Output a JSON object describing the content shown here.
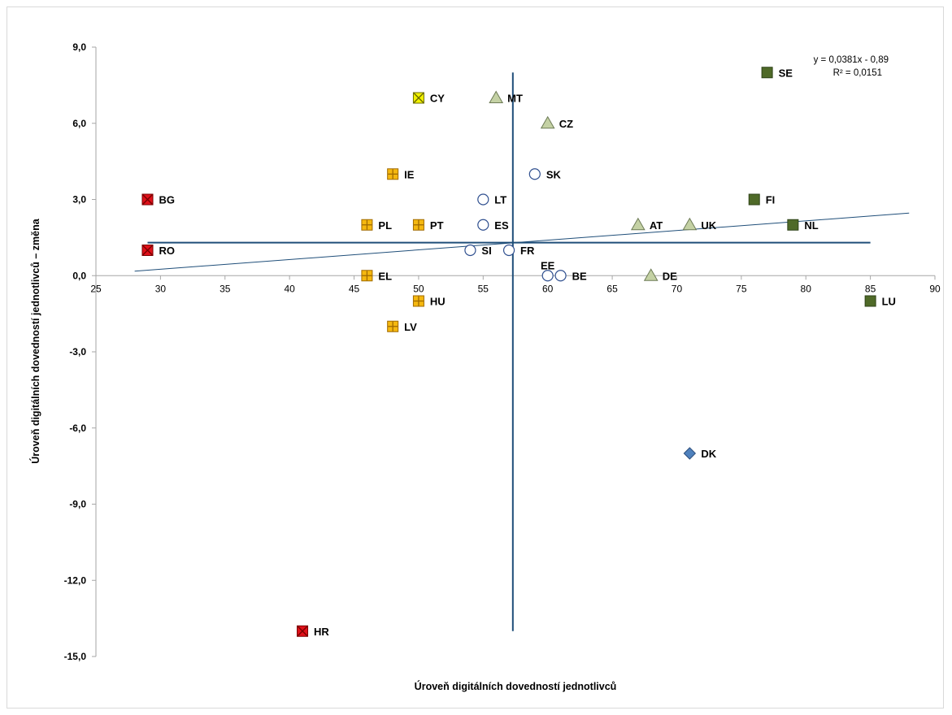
{
  "chart_data": {
    "type": "scatter",
    "xlabel": "Úroveň digitálních dovedností jednotlivců",
    "ylabel": "Úroveň digitálních dovedností jednotlivců – změna",
    "xlim": [
      25,
      90
    ],
    "ylim": [
      -15,
      9
    ],
    "x_ticks": [
      "25",
      "30",
      "35",
      "40",
      "45",
      "50",
      "55",
      "60",
      "65",
      "70",
      "75",
      "80",
      "85",
      "90"
    ],
    "y_ticks": [
      "9,0",
      "6,0",
      "3,0",
      "0,0",
      "-3,0",
      "-6,0",
      "-9,0",
      "-12,0",
      "-15,0"
    ],
    "grid": false,
    "trendline": {
      "equation": "y = 0,0381x - 0,89",
      "r2": "R² = 0,0151",
      "slope": 0.0381,
      "intercept": -0.89,
      "x_range": [
        28,
        88
      ]
    },
    "reference_lines": {
      "x_mean": 57.3,
      "y_mean": 1.3,
      "x_line_y_range": [
        -14,
        8
      ],
      "y_line_x_range": [
        29,
        85
      ]
    },
    "marker_styles": {
      "red_square": {
        "fill": "#e0101a",
        "stroke": "#7a0000",
        "glyph": "x"
      },
      "yellow_square": {
        "fill": "#f5b80f",
        "stroke": "#a06a00",
        "glyph": "plus"
      },
      "yellow_x": {
        "fill": "#f2f200",
        "stroke": "#6b6b00",
        "glyph": "x"
      },
      "circle": {
        "fill": "#ffffff",
        "stroke": "#2f4f8f"
      },
      "triangle": {
        "fill": "#c4d1a4",
        "stroke": "#6c7a55"
      },
      "green_square": {
        "fill": "#4f6a28",
        "stroke": "#2f4318"
      },
      "diamond": {
        "fill": "#4f81bd",
        "stroke": "#2d4f7c"
      }
    },
    "series_line_color": "#1f4e79",
    "points": [
      {
        "label": "SE",
        "x": 77,
        "y": 8,
        "marker": "green_square"
      },
      {
        "label": "CY",
        "x": 50,
        "y": 7,
        "marker": "yellow_x"
      },
      {
        "label": "MT",
        "x": 56,
        "y": 7,
        "marker": "triangle"
      },
      {
        "label": "CZ",
        "x": 60,
        "y": 6,
        "marker": "triangle"
      },
      {
        "label": "IE",
        "x": 48,
        "y": 4,
        "marker": "yellow_square"
      },
      {
        "label": "SK",
        "x": 59,
        "y": 4,
        "marker": "circle"
      },
      {
        "label": "BG",
        "x": 29,
        "y": 3,
        "marker": "red_square"
      },
      {
        "label": "LT",
        "x": 55,
        "y": 3,
        "marker": "circle"
      },
      {
        "label": "FI",
        "x": 76,
        "y": 3,
        "marker": "green_square"
      },
      {
        "label": "PL",
        "x": 46,
        "y": 2,
        "marker": "yellow_square"
      },
      {
        "label": "PT",
        "x": 50,
        "y": 2,
        "marker": "yellow_square"
      },
      {
        "label": "ES",
        "x": 55,
        "y": 2,
        "marker": "circle"
      },
      {
        "label": "AT",
        "x": 67,
        "y": 2,
        "marker": "triangle"
      },
      {
        "label": "UK",
        "x": 71,
        "y": 2,
        "marker": "triangle"
      },
      {
        "label": "NL",
        "x": 79,
        "y": 2,
        "marker": "green_square"
      },
      {
        "label": "RO",
        "x": 29,
        "y": 1,
        "marker": "red_square"
      },
      {
        "label": "SI",
        "x": 54,
        "y": 1,
        "marker": "circle"
      },
      {
        "label": "FR",
        "x": 57,
        "y": 1,
        "marker": "circle"
      },
      {
        "label": "EL",
        "x": 46,
        "y": 0,
        "marker": "yellow_square"
      },
      {
        "label": "EE",
        "x": 60,
        "y": 0,
        "marker": "circle",
        "label_pos": "above"
      },
      {
        "label": "BE",
        "x": 61,
        "y": 0,
        "marker": "circle"
      },
      {
        "label": "DE",
        "x": 68,
        "y": 0,
        "marker": "triangle"
      },
      {
        "label": "HU",
        "x": 50,
        "y": -1,
        "marker": "yellow_square"
      },
      {
        "label": "LU",
        "x": 85,
        "y": -1,
        "marker": "green_square"
      },
      {
        "label": "LV",
        "x": 48,
        "y": -2,
        "marker": "yellow_square"
      },
      {
        "label": "DK",
        "x": 71,
        "y": -7,
        "marker": "diamond"
      },
      {
        "label": "HR",
        "x": 41,
        "y": -14,
        "marker": "red_square"
      }
    ]
  }
}
